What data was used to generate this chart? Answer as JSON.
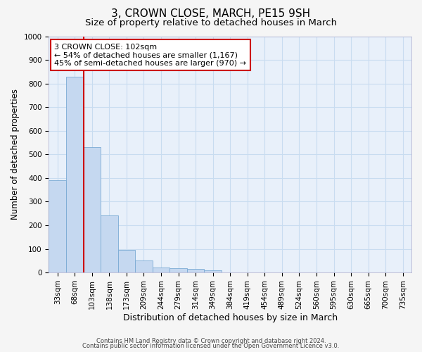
{
  "title": "3, CROWN CLOSE, MARCH, PE15 9SH",
  "subtitle": "Size of property relative to detached houses in March",
  "xlabel": "Distribution of detached houses by size in March",
  "ylabel": "Number of detached properties",
  "categories": [
    "33sqm",
    "68sqm",
    "103sqm",
    "138sqm",
    "173sqm",
    "209sqm",
    "244sqm",
    "279sqm",
    "314sqm",
    "349sqm",
    "384sqm",
    "419sqm",
    "454sqm",
    "489sqm",
    "524sqm",
    "560sqm",
    "595sqm",
    "630sqm",
    "665sqm",
    "700sqm",
    "735sqm"
  ],
  "values": [
    390,
    830,
    530,
    242,
    97,
    52,
    21,
    18,
    16,
    10,
    0,
    0,
    0,
    0,
    0,
    0,
    0,
    0,
    0,
    0,
    0
  ],
  "bar_color": "#c5d8f0",
  "bar_edge_color": "#7aaad4",
  "vline_color": "#cc0000",
  "vline_x_index": 2,
  "annotation_text": "3 CROWN CLOSE: 102sqm\n← 54% of detached houses are smaller (1,167)\n45% of semi-detached houses are larger (970) →",
  "annotation_box_facecolor": "#ffffff",
  "annotation_box_edgecolor": "#cc0000",
  "ylim": [
    0,
    1000
  ],
  "yticks": [
    0,
    100,
    200,
    300,
    400,
    500,
    600,
    700,
    800,
    900,
    1000
  ],
  "grid_color": "#c8dcf0",
  "plot_bg_color": "#e8f0fa",
  "fig_bg_color": "#f5f5f5",
  "footer1": "Contains HM Land Registry data © Crown copyright and database right 2024.",
  "footer2": "Contains public sector information licensed under the Open Government Licence v3.0.",
  "title_fontsize": 11,
  "subtitle_fontsize": 9.5,
  "xlabel_fontsize": 9,
  "ylabel_fontsize": 8.5,
  "tick_fontsize": 7.5,
  "annotation_fontsize": 8,
  "footer_fontsize": 6
}
